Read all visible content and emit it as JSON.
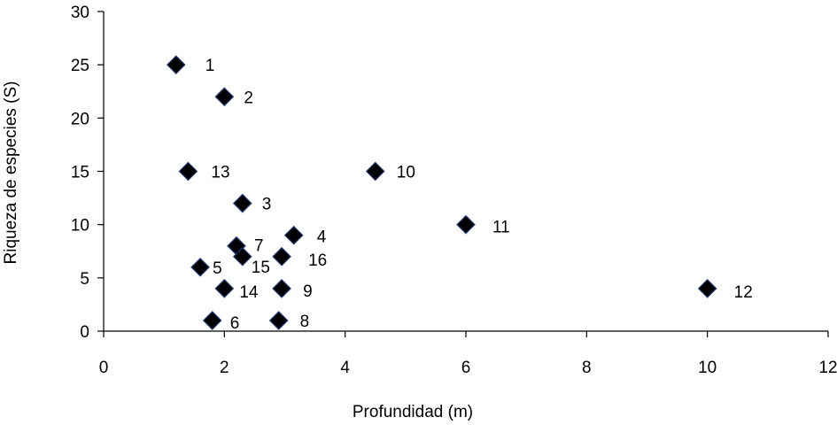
{
  "chart_data": {
    "type": "scatter",
    "title": "",
    "xlabel": "Profundidad (m)",
    "ylabel": "Riqueza de especies (S)",
    "xlim": [
      0,
      12
    ],
    "ylim": [
      0,
      30
    ],
    "xticks": [
      0,
      2,
      4,
      6,
      8,
      10,
      12
    ],
    "yticks": [
      0,
      5,
      10,
      15,
      20,
      25,
      30
    ],
    "grid": false,
    "marker": "diamond",
    "marker_color": "#000000",
    "marker_edge_color": "#1f3a78",
    "points": [
      {
        "label": "1",
        "x": 1.2,
        "y": 25
      },
      {
        "label": "2",
        "x": 2.0,
        "y": 22
      },
      {
        "label": "3",
        "x": 2.3,
        "y": 12
      },
      {
        "label": "4",
        "x": 3.15,
        "y": 9
      },
      {
        "label": "5",
        "x": 1.6,
        "y": 6
      },
      {
        "label": "6",
        "x": 1.8,
        "y": 1
      },
      {
        "label": "7",
        "x": 2.2,
        "y": 8
      },
      {
        "label": "8",
        "x": 2.9,
        "y": 1
      },
      {
        "label": "9",
        "x": 2.95,
        "y": 4
      },
      {
        "label": "10",
        "x": 4.5,
        "y": 15
      },
      {
        "label": "11",
        "x": 6.0,
        "y": 10
      },
      {
        "label": "12",
        "x": 10.0,
        "y": 4
      },
      {
        "label": "13",
        "x": 1.4,
        "y": 15
      },
      {
        "label": "14",
        "x": 2.0,
        "y": 4
      },
      {
        "label": "15",
        "x": 2.3,
        "y": 7
      },
      {
        "label": "16",
        "x": 2.95,
        "y": 7
      }
    ]
  }
}
